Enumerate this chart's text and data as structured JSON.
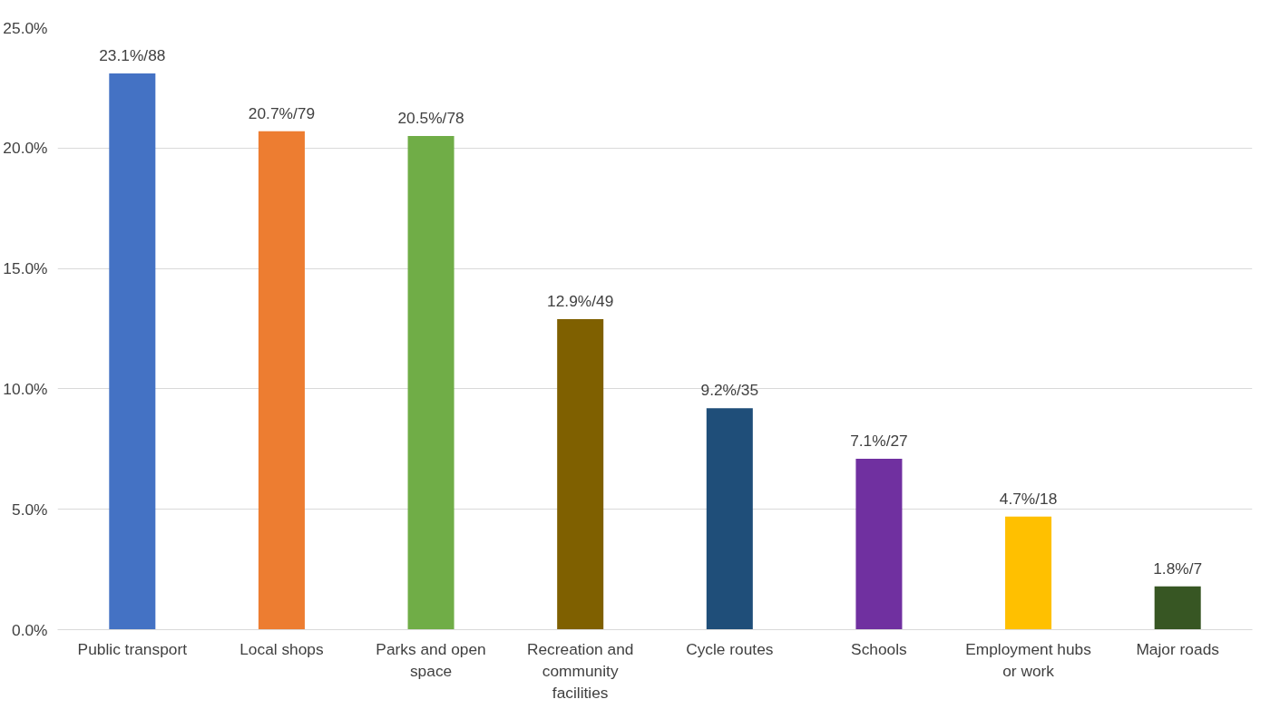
{
  "chart_data": {
    "type": "bar",
    "categories": [
      "Public transport",
      "Local shops",
      "Parks and open space",
      "Recreation and community facilities",
      "Cycle routes",
      "Schools",
      "Employment hubs or work",
      "Major roads"
    ],
    "values": [
      23.1,
      20.7,
      20.5,
      12.9,
      9.2,
      7.1,
      4.7,
      1.8
    ],
    "colors": [
      "#4472c4",
      "#ed7d31",
      "#70ad47",
      "#7f6000",
      "#1f4e79",
      "#7030a0",
      "#ffc000",
      "#375623"
    ],
    "value_labels": [
      "23.1%/88",
      "20.7%/79",
      "20.5%/78",
      "12.9%/49",
      "9.2%/35",
      "7.1%/27",
      "4.7%/18",
      "1.8%/7"
    ],
    "ylim": [
      0,
      25
    ],
    "yticks": [
      {
        "value": 0,
        "label": "0.0%"
      },
      {
        "value": 5,
        "label": "5.0%"
      },
      {
        "value": 10,
        "label": "10.0%"
      },
      {
        "value": 15,
        "label": "15.0%"
      },
      {
        "value": 20,
        "label": "20.0%"
      },
      {
        "value": 25,
        "label": "25.0%"
      }
    ],
    "grid": "y"
  }
}
